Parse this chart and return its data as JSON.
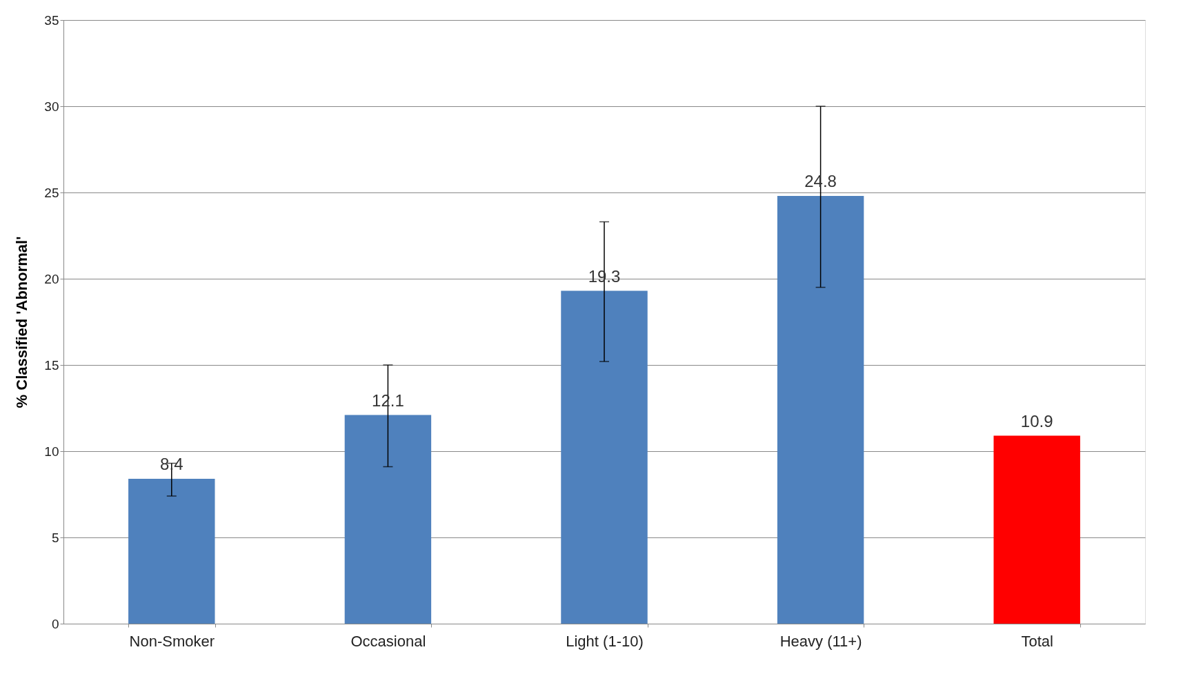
{
  "chart_data": {
    "type": "bar",
    "ylabel": "% Classified 'Abnormal'",
    "categories": [
      "Non-Smoker",
      "Occasional",
      "Light (1-10)",
      "Heavy (11+)",
      "Total"
    ],
    "values": [
      8.4,
      12.1,
      19.3,
      24.8,
      10.9
    ],
    "colors": [
      "#4f81bd",
      "#4f81bd",
      "#4f81bd",
      "#4f81bd",
      "#ff0000"
    ],
    "errors": [
      [
        7.4,
        9.3
      ],
      [
        9.1,
        15.0
      ],
      [
        15.2,
        23.3
      ],
      [
        19.5,
        30.0
      ],
      null
    ],
    "ylim": [
      0,
      35
    ],
    "yticks": [
      0,
      5,
      10,
      15,
      20,
      25,
      30,
      35
    ],
    "grid": "y",
    "data_labels": true
  }
}
